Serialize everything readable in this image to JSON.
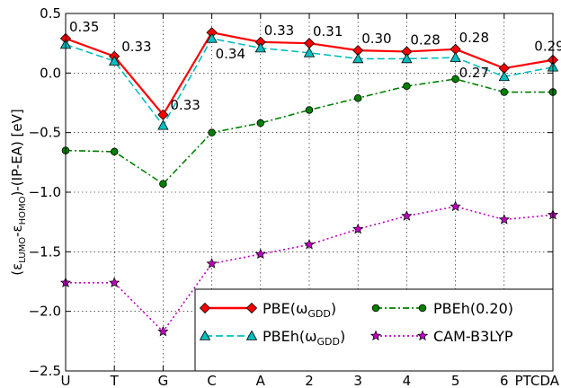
{
  "chart_data": {
    "type": "line",
    "ylabel": "(ε_LUMO-ε_HOMO)-(IP-EA) [eV]",
    "ylabel_parts": [
      "(ε",
      "LUMO",
      "-ε",
      "HOMO",
      ")-(IP-EA) [eV]"
    ],
    "categories": [
      "U",
      "T",
      "G",
      "C",
      "A",
      "2",
      "3",
      "4",
      "5",
      "6",
      "PTCDA"
    ],
    "ylim": [
      -2.5,
      0.5
    ],
    "yticks": [
      {
        "value": 0.5,
        "label": "0.5"
      },
      {
        "value": 0.0,
        "label": "0.0"
      },
      {
        "value": -0.5,
        "label": "−0.5"
      },
      {
        "value": -1.0,
        "label": "−1.0"
      },
      {
        "value": -1.5,
        "label": "−1.5"
      },
      {
        "value": -2.0,
        "label": "−2.0"
      },
      {
        "value": -2.5,
        "label": "−2.5"
      }
    ],
    "grid": true,
    "legend_position": "lower-right",
    "series": [
      {
        "name": "PBE(ω_GDD)",
        "name_main": "PBE(ω",
        "name_sub": "GDD",
        "name_tail": ")",
        "color": "#ff0000",
        "marker": "diamond",
        "dash": "solid",
        "values": [
          0.29,
          0.14,
          -0.35,
          0.34,
          0.26,
          0.25,
          0.19,
          0.18,
          0.2,
          0.04,
          0.11
        ]
      },
      {
        "name": "PBEh(ω_GDD)",
        "name_main": "PBEh(ω",
        "name_sub": "GDD",
        "name_tail": ")",
        "color": "#00bfbf",
        "marker": "triangle",
        "dash": "dashed",
        "values": [
          0.24,
          0.1,
          -0.44,
          0.29,
          0.21,
          0.17,
          0.12,
          0.12,
          0.13,
          -0.03,
          0.05
        ]
      },
      {
        "name": "PBEh(0.20)",
        "name_main": "PBEh(0.20)",
        "name_sub": "",
        "name_tail": "",
        "color": "#008000",
        "marker": "circle",
        "dash": "dashdot",
        "values": [
          -0.65,
          -0.66,
          -0.93,
          -0.5,
          -0.42,
          -0.31,
          -0.21,
          -0.11,
          -0.05,
          -0.16,
          -0.16
        ]
      },
      {
        "name": "CAM-B3LYP",
        "name_main": "CAM-B3LYP",
        "name_sub": "",
        "name_tail": "",
        "color": "#bf00bf",
        "marker": "star",
        "dash": "dotted",
        "values": [
          -1.76,
          -1.76,
          -2.17,
          -1.6,
          -1.52,
          -1.44,
          -1.31,
          -1.2,
          -1.12,
          -1.23,
          -1.19
        ]
      }
    ],
    "annotations": [
      {
        "text": "0.35",
        "category": "U",
        "y": 0.29,
        "pos": "above-right"
      },
      {
        "text": "0.33",
        "category": "T",
        "y": 0.14,
        "pos": "right"
      },
      {
        "text": "0.33",
        "category": "G",
        "y": -0.35,
        "pos": "right"
      },
      {
        "text": "0.34",
        "category": "C",
        "y": 0.29,
        "pos": "below-right"
      },
      {
        "text": "0.33",
        "category": "A",
        "y": 0.26,
        "pos": "above-right"
      },
      {
        "text": "0.31",
        "category": "2",
        "y": 0.25,
        "pos": "above-right"
      },
      {
        "text": "0.30",
        "category": "3",
        "y": 0.19,
        "pos": "above-right"
      },
      {
        "text": "0.28",
        "category": "4",
        "y": 0.18,
        "pos": "above-right"
      },
      {
        "text": "0.28",
        "category": "5",
        "y": 0.2,
        "pos": "above-right"
      },
      {
        "text": "0.27",
        "category": "5",
        "y": 0.13,
        "pos": "below-right"
      },
      {
        "text": "0.29",
        "category": "PTCDA",
        "y": 0.11,
        "pos": "above"
      }
    ]
  }
}
